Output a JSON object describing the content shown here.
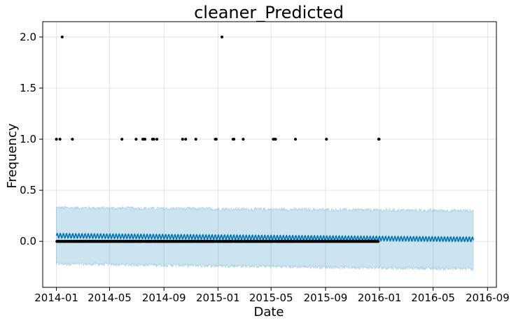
{
  "chart_data": {
    "type": "scatter",
    "title": "cleaner_Predicted",
    "xlabel": "Date",
    "ylabel": "Frequency",
    "xlim": [
      "2013-12-01",
      "2016-09-21"
    ],
    "ylim": [
      -0.45,
      2.15
    ],
    "grid": true,
    "x_ticks": [
      "2014-01",
      "2014-05",
      "2014-09",
      "2015-01",
      "2015-05",
      "2015-09",
      "2016-01",
      "2016-05",
      "2016-09"
    ],
    "y_ticks": [
      "0.0",
      "0.5",
      "1.0",
      "1.5",
      "2.0"
    ],
    "observed": {
      "start": "2014-01-01",
      "end": "2015-12-31",
      "baseline_value": 0,
      "points": [
        {
          "x": "2014-01-01",
          "y": 1
        },
        {
          "x": "2014-01-09",
          "y": 1
        },
        {
          "x": "2014-01-14",
          "y": 2
        },
        {
          "x": "2014-02-06",
          "y": 1
        },
        {
          "x": "2014-05-29",
          "y": 1
        },
        {
          "x": "2014-06-30",
          "y": 1
        },
        {
          "x": "2014-07-15",
          "y": 1
        },
        {
          "x": "2014-07-17",
          "y": 1
        },
        {
          "x": "2014-07-20",
          "y": 1
        },
        {
          "x": "2014-08-06",
          "y": 1
        },
        {
          "x": "2014-08-09",
          "y": 1
        },
        {
          "x": "2014-08-16",
          "y": 1
        },
        {
          "x": "2014-10-13",
          "y": 1
        },
        {
          "x": "2014-10-20",
          "y": 1
        },
        {
          "x": "2014-11-12",
          "y": 1
        },
        {
          "x": "2014-12-26",
          "y": 1
        },
        {
          "x": "2014-12-28",
          "y": 1
        },
        {
          "x": "2015-01-10",
          "y": 2
        },
        {
          "x": "2015-02-04",
          "y": 1
        },
        {
          "x": "2015-02-06",
          "y": 1
        },
        {
          "x": "2015-02-27",
          "y": 1
        },
        {
          "x": "2015-05-06",
          "y": 1
        },
        {
          "x": "2015-05-09",
          "y": 1
        },
        {
          "x": "2015-05-11",
          "y": 1
        },
        {
          "x": "2015-06-25",
          "y": 1
        },
        {
          "x": "2015-09-03",
          "y": 1
        },
        {
          "x": "2015-12-30",
          "y": 1
        },
        {
          "x": "2015-12-31",
          "y": 1
        }
      ]
    },
    "forecast": {
      "start": "2014-01-01",
      "end": "2016-07-31",
      "trend_start": 0.055,
      "trend_end": 0.02,
      "weekly_amplitude": 0.022,
      "interval_lower_start": -0.22,
      "interval_lower_end": -0.27,
      "interval_upper_start": 0.33,
      "interval_upper_end": 0.3,
      "interval_noise": 0.018
    },
    "colors": {
      "observed": "#000000",
      "forecast_line": "#0072B2",
      "uncertainty": "#0072B2",
      "grid": "#dddddd",
      "axes": "#000000"
    }
  }
}
